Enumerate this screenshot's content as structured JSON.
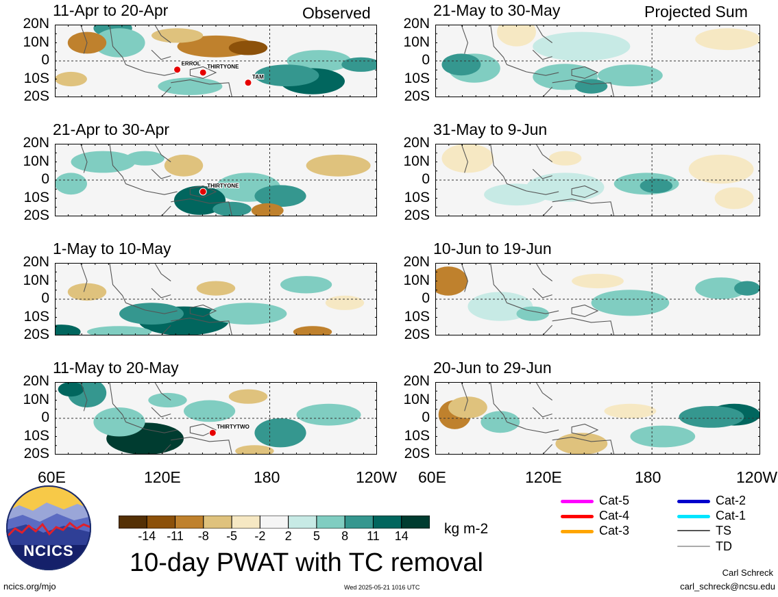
{
  "header": {
    "observed_label": "Observed",
    "projected_label": "Projected Sum"
  },
  "panels": [
    {
      "title": "11-Apr to 20-Apr",
      "storms": [
        "ERROL",
        "THIRTYONE",
        "TAM"
      ]
    },
    {
      "title": "21-Apr to 30-Apr",
      "storms": [
        "THIRTYONE"
      ]
    },
    {
      "title": "1-May to 10-May",
      "storms": []
    },
    {
      "title": "11-May to 20-May",
      "storms": [
        "THIRTYTWO"
      ]
    },
    {
      "title": "21-May to 30-May",
      "storms": []
    },
    {
      "title": "31-May to 9-Jun",
      "storms": []
    },
    {
      "title": "10-Jun to 19-Jun",
      "storms": []
    },
    {
      "title": "20-Jun to 29-Jun",
      "storms": []
    }
  ],
  "lat_labels": [
    "20N",
    "10N",
    "0",
    "10S",
    "20S"
  ],
  "lon_labels": [
    "60E",
    "120E",
    "180",
    "120W"
  ],
  "colorbar": {
    "ticks": [
      "-14",
      "-11",
      "-8",
      "-5",
      "-2",
      "2",
      "5",
      "8",
      "11",
      "14"
    ],
    "colors": [
      "#543005",
      "#8c510a",
      "#bf812d",
      "#dfc27d",
      "#f6e8c3",
      "#f5f5f5",
      "#c7eae5",
      "#80cdc1",
      "#35978f",
      "#01665e",
      "#003c30"
    ],
    "unit": "kg m-2"
  },
  "legend": [
    {
      "label": "Cat-5",
      "color": "#ff00ff"
    },
    {
      "label": "Cat-2",
      "color": "#0000cc"
    },
    {
      "label": "Cat-4",
      "color": "#ff0000"
    },
    {
      "label": "Cat-1",
      "color": "#00e5ff"
    },
    {
      "label": "Cat-3",
      "color": "#ffa500"
    },
    {
      "label": "TS",
      "color": "#555555"
    },
    {
      "label": "TD",
      "color": "#aaaaaa"
    }
  ],
  "logo": {
    "text": "NCICS"
  },
  "title": "10-day PWAT with TC removal",
  "footer": {
    "url": "ncics.org/mjo",
    "timestamp": "Wed 2025-05-21 1016 UTC",
    "author": "Carl Schreck",
    "email": "carl_schreck@ncsu.edu"
  }
}
